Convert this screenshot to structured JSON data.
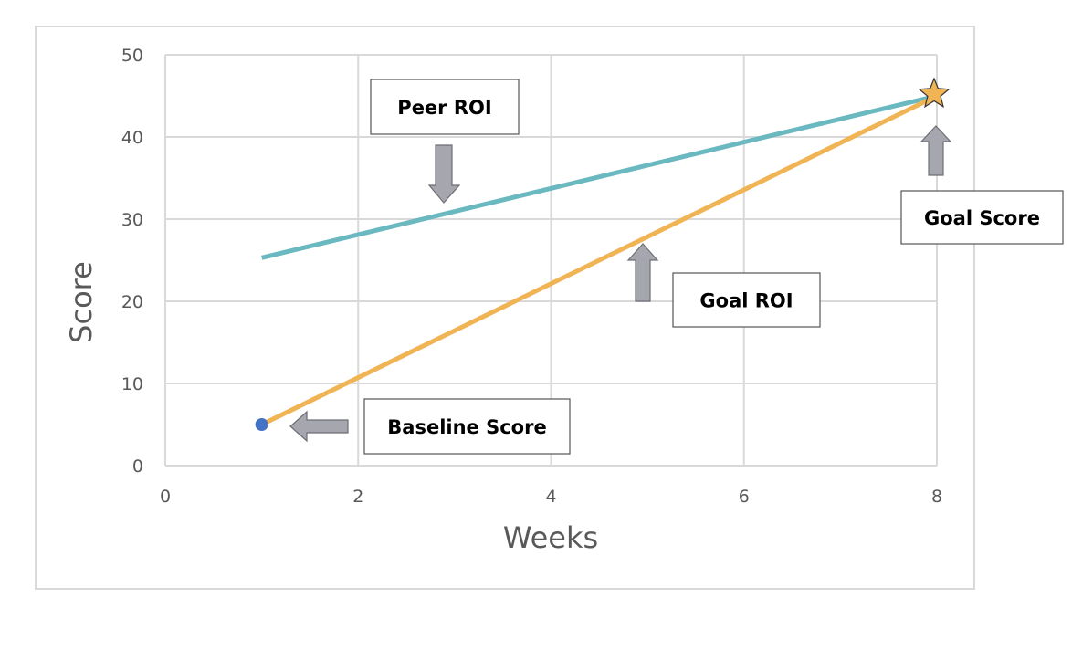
{
  "chart_data": {
    "type": "line",
    "xlabel": "Weeks",
    "ylabel": "Score",
    "xlim": [
      0,
      8
    ],
    "ylim": [
      0,
      50
    ],
    "x_ticks": [
      0,
      2,
      4,
      6,
      8
    ],
    "y_ticks": [
      0,
      10,
      20,
      30,
      40,
      50
    ],
    "grid": true,
    "series": [
      {
        "key": "peer",
        "points": [
          [
            1,
            25.3
          ],
          [
            8,
            45
          ]
        ],
        "color": "#6ab8c0"
      },
      {
        "key": "goal",
        "points": [
          [
            1,
            5
          ],
          [
            8,
            45
          ]
        ],
        "color": "#f0b455"
      }
    ],
    "baseline_point": {
      "x": 1,
      "y": 5,
      "color": "#4472c4"
    },
    "goal_point": {
      "x": 8,
      "y": 45,
      "color": "#f0b455"
    },
    "annotations": [
      {
        "key": "peer_roi",
        "text": "Peer ROI"
      },
      {
        "key": "goal_score",
        "text": "Goal Score"
      },
      {
        "key": "goal_roi",
        "text": "Goal ROI"
      },
      {
        "key": "baseline_score",
        "text": "Baseline Score"
      }
    ]
  }
}
